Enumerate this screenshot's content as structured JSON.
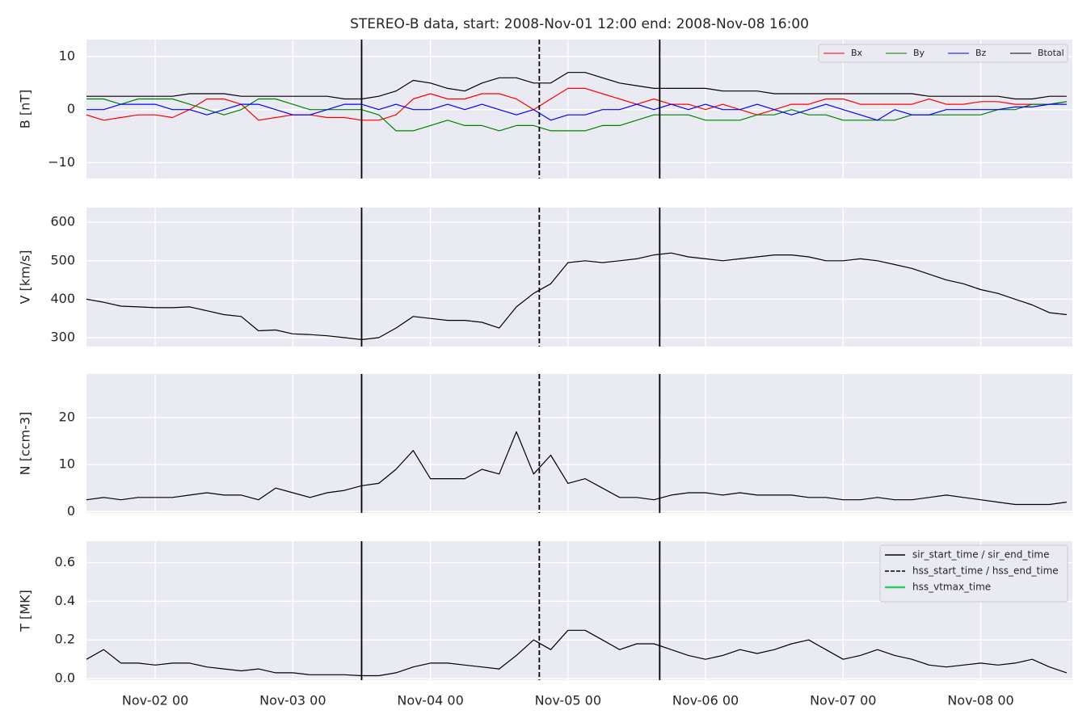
{
  "title": "STEREO-B data, start: 2008-Nov-01 12:00  end: 2008-Nov-08 16:00",
  "events": [
    {
      "name": "sir_start_time / sir_end_time",
      "style": "solid",
      "color": "#000000",
      "x": [
        "Nov-03 12",
        "Nov-05 16"
      ]
    },
    {
      "name": "hss_start_time / hss_end_time",
      "style": "dashed",
      "color": "#000000",
      "x": [
        "Nov-04 19"
      ]
    },
    {
      "name": "hss_vtmax_time",
      "style": "solid",
      "color": "#2ecc71",
      "x": []
    }
  ],
  "chart_data": [
    {
      "type": "line",
      "ylabel": "B [nT]",
      "legend": "upper right",
      "grid": true,
      "xlim": [
        "Nov-01 12",
        "Nov-08 16"
      ],
      "xticks": [
        "Nov-02 00",
        "Nov-03 00",
        "Nov-04 00",
        "Nov-05 00",
        "Nov-06 00",
        "Nov-07 00",
        "Nov-08 00"
      ],
      "ylim": [
        -13,
        13.2
      ],
      "yticks": [
        {
          "value": -10,
          "label": "−10"
        },
        0,
        10
      ],
      "x": [
        "Nov-01 12",
        "Nov-01 15",
        "Nov-01 18",
        "Nov-01 21",
        "Nov-02 00",
        "Nov-02 03",
        "Nov-02 06",
        "Nov-02 09",
        "Nov-02 12",
        "Nov-02 15",
        "Nov-02 18",
        "Nov-02 21",
        "Nov-03 00",
        "Nov-03 03",
        "Nov-03 06",
        "Nov-03 09",
        "Nov-03 12",
        "Nov-03 15",
        "Nov-03 18",
        "Nov-03 21",
        "Nov-04 00",
        "Nov-04 03",
        "Nov-04 06",
        "Nov-04 09",
        "Nov-04 12",
        "Nov-04 15",
        "Nov-04 18",
        "Nov-04 21",
        "Nov-05 00",
        "Nov-05 03",
        "Nov-05 06",
        "Nov-05 09",
        "Nov-05 12",
        "Nov-05 15",
        "Nov-05 18",
        "Nov-05 21",
        "Nov-06 00",
        "Nov-06 03",
        "Nov-06 06",
        "Nov-06 09",
        "Nov-06 12",
        "Nov-06 15",
        "Nov-06 18",
        "Nov-06 21",
        "Nov-07 00",
        "Nov-07 03",
        "Nov-07 06",
        "Nov-07 09",
        "Nov-07 12",
        "Nov-07 15",
        "Nov-07 18",
        "Nov-07 21",
        "Nov-08 00",
        "Nov-08 03",
        "Nov-08 06",
        "Nov-08 09",
        "Nov-08 12",
        "Nov-08 15"
      ],
      "series": [
        {
          "name": "Bx",
          "color": "#ff0000",
          "values": [
            -1,
            -2,
            -1.5,
            -1,
            -1,
            -1.5,
            0,
            2,
            2,
            1,
            -2,
            -1.5,
            -1,
            -1,
            -1.5,
            -1.5,
            -2,
            -2,
            -1,
            2,
            3,
            2,
            2,
            3,
            3,
            2,
            0,
            2,
            4,
            4,
            3,
            2,
            1,
            2,
            1,
            1,
            0,
            1,
            0,
            -1,
            0,
            1,
            1,
            2,
            2,
            1,
            1,
            1,
            1,
            2,
            1,
            1,
            1.5,
            1.5,
            1,
            1,
            1,
            1.5
          ]
        },
        {
          "name": "By",
          "color": "#008000",
          "values": [
            2,
            2,
            1,
            2,
            2,
            2,
            1,
            0,
            -1,
            0,
            2,
            2,
            1,
            0,
            0,
            0,
            0,
            -1,
            -4,
            -4,
            -3,
            -2,
            -3,
            -3,
            -4,
            -3,
            -3,
            -4,
            -4,
            -4,
            -3,
            -3,
            -2,
            -1,
            -1,
            -1,
            -2,
            -2,
            -2,
            -1,
            -1,
            0,
            -1,
            -1,
            -2,
            -2,
            -2,
            -2,
            -1,
            -1,
            -1,
            -1,
            -1,
            0,
            0,
            1,
            1,
            1.5
          ]
        },
        {
          "name": "Bz",
          "color": "#0000ff",
          "values": [
            0,
            0,
            1,
            1,
            1,
            0,
            0,
            -1,
            0,
            1,
            1,
            0,
            -1,
            -1,
            0,
            1,
            1,
            0,
            1,
            0,
            0,
            1,
            0,
            1,
            0,
            -1,
            0,
            -2,
            -1,
            -1,
            0,
            0,
            1,
            0,
            1,
            0,
            1,
            0,
            0,
            1,
            0,
            -1,
            0,
            1,
            0,
            -1,
            -2,
            0,
            -1,
            -1,
            0,
            0,
            0,
            0,
            0.5,
            0.5,
            1,
            1
          ]
        },
        {
          "name": "Btotal",
          "color": "#000000",
          "values": [
            2.5,
            2.5,
            2.5,
            2.5,
            2.5,
            2.5,
            3,
            3,
            3,
            2.5,
            2.5,
            2.5,
            2.5,
            2.5,
            2.5,
            2,
            2,
            2.5,
            3.5,
            5.5,
            5,
            4,
            3.5,
            5,
            6,
            6,
            5,
            5,
            7,
            7,
            6,
            5,
            4.5,
            4,
            4,
            4,
            4,
            3.5,
            3.5,
            3.5,
            3,
            3,
            3,
            3,
            3,
            3,
            3,
            3,
            3,
            2.5,
            2.5,
            2.5,
            2.5,
            2.5,
            2,
            2,
            2.5,
            2.5
          ]
        }
      ]
    },
    {
      "type": "line",
      "ylabel": "V [km/s]",
      "grid": true,
      "xlim": [
        "Nov-01 12",
        "Nov-08 16"
      ],
      "xticks": [
        "Nov-02 00",
        "Nov-03 00",
        "Nov-04 00",
        "Nov-05 00",
        "Nov-06 00",
        "Nov-07 00",
        "Nov-08 00"
      ],
      "ylim": [
        277,
        638
      ],
      "yticks": [
        300,
        400,
        500,
        600
      ],
      "x": [
        "Nov-01 12",
        "Nov-01 15",
        "Nov-01 18",
        "Nov-01 21",
        "Nov-02 00",
        "Nov-02 03",
        "Nov-02 06",
        "Nov-02 09",
        "Nov-02 12",
        "Nov-02 15",
        "Nov-02 18",
        "Nov-02 21",
        "Nov-03 00",
        "Nov-03 03",
        "Nov-03 06",
        "Nov-03 09",
        "Nov-03 12",
        "Nov-03 15",
        "Nov-03 18",
        "Nov-03 21",
        "Nov-04 00",
        "Nov-04 03",
        "Nov-04 06",
        "Nov-04 09",
        "Nov-04 12",
        "Nov-04 15",
        "Nov-04 18",
        "Nov-04 21",
        "Nov-05 00",
        "Nov-05 03",
        "Nov-05 06",
        "Nov-05 09",
        "Nov-05 12",
        "Nov-05 15",
        "Nov-05 18",
        "Nov-05 21",
        "Nov-06 00",
        "Nov-06 03",
        "Nov-06 06",
        "Nov-06 09",
        "Nov-06 12",
        "Nov-06 15",
        "Nov-06 18",
        "Nov-06 21",
        "Nov-07 00",
        "Nov-07 03",
        "Nov-07 06",
        "Nov-07 09",
        "Nov-07 12",
        "Nov-07 15",
        "Nov-07 18",
        "Nov-07 21",
        "Nov-08 00",
        "Nov-08 03",
        "Nov-08 06",
        "Nov-08 09",
        "Nov-08 12",
        "Nov-08 15"
      ],
      "color": "#000000",
      "values": [
        400,
        392,
        382,
        380,
        378,
        378,
        380,
        370,
        360,
        355,
        318,
        320,
        310,
        308,
        305,
        300,
        295,
        300,
        325,
        355,
        350,
        345,
        345,
        340,
        325,
        380,
        415,
        440,
        495,
        500,
        495,
        500,
        505,
        515,
        520,
        510,
        505,
        500,
        505,
        510,
        515,
        515,
        510,
        500,
        500,
        505,
        500,
        490,
        480,
        465,
        450,
        440,
        425,
        415,
        400,
        385,
        365,
        360
      ]
    },
    {
      "type": "line",
      "ylabel": "N [ccm-3]",
      "grid": true,
      "xlim": [
        "Nov-01 12",
        "Nov-08 16"
      ],
      "xticks": [
        "Nov-02 00",
        "Nov-03 00",
        "Nov-04 00",
        "Nov-05 00",
        "Nov-06 00",
        "Nov-07 00",
        "Nov-08 00"
      ],
      "ylim": [
        -0.3,
        29.3
      ],
      "yticks": [
        0,
        10,
        20
      ],
      "x": [
        "Nov-01 12",
        "Nov-01 15",
        "Nov-01 18",
        "Nov-01 21",
        "Nov-02 00",
        "Nov-02 03",
        "Nov-02 06",
        "Nov-02 09",
        "Nov-02 12",
        "Nov-02 15",
        "Nov-02 18",
        "Nov-02 21",
        "Nov-03 00",
        "Nov-03 03",
        "Nov-03 06",
        "Nov-03 09",
        "Nov-03 12",
        "Nov-03 15",
        "Nov-03 18",
        "Nov-03 21",
        "Nov-04 00",
        "Nov-04 03",
        "Nov-04 06",
        "Nov-04 09",
        "Nov-04 12",
        "Nov-04 15",
        "Nov-04 18",
        "Nov-04 21",
        "Nov-05 00",
        "Nov-05 03",
        "Nov-05 06",
        "Nov-05 09",
        "Nov-05 12",
        "Nov-05 15",
        "Nov-05 18",
        "Nov-05 21",
        "Nov-06 00",
        "Nov-06 03",
        "Nov-06 06",
        "Nov-06 09",
        "Nov-06 12",
        "Nov-06 15",
        "Nov-06 18",
        "Nov-06 21",
        "Nov-07 00",
        "Nov-07 03",
        "Nov-07 06",
        "Nov-07 09",
        "Nov-07 12",
        "Nov-07 15",
        "Nov-07 18",
        "Nov-07 21",
        "Nov-08 00",
        "Nov-08 03",
        "Nov-08 06",
        "Nov-08 09",
        "Nov-08 12",
        "Nov-08 15"
      ],
      "color": "#000000",
      "values": [
        2.5,
        3,
        2.5,
        3,
        3,
        3,
        3.5,
        4,
        3.5,
        3.5,
        2.5,
        5,
        4,
        3,
        4,
        4.5,
        5.5,
        6,
        9,
        13,
        7,
        7,
        7,
        9,
        8,
        17,
        8,
        12,
        6,
        7,
        5,
        3,
        3,
        2.5,
        3.5,
        4,
        4,
        3.5,
        4,
        3.5,
        3.5,
        3.5,
        3,
        3,
        2.5,
        2.5,
        3,
        2.5,
        2.5,
        3,
        3.5,
        3,
        2.5,
        2,
        1.5,
        1.5,
        1.5,
        2
      ]
    },
    {
      "type": "line",
      "ylabel": "T [MK]",
      "legend": "upper right",
      "grid": true,
      "xlim": [
        "Nov-01 12",
        "Nov-08 16"
      ],
      "xticks": [
        "Nov-02 00",
        "Nov-03 00",
        "Nov-04 00",
        "Nov-05 00",
        "Nov-06 00",
        "Nov-07 00",
        "Nov-08 00"
      ],
      "ylim": [
        -0.008,
        0.711
      ],
      "yticks": [
        {
          "value": 0,
          "label": "0.0"
        },
        {
          "value": 0.2,
          "label": "0.2"
        },
        {
          "value": 0.4,
          "label": "0.4"
        },
        {
          "value": 0.6,
          "label": "0.6"
        }
      ],
      "x": [
        "Nov-01 12",
        "Nov-01 15",
        "Nov-01 18",
        "Nov-01 21",
        "Nov-02 00",
        "Nov-02 03",
        "Nov-02 06",
        "Nov-02 09",
        "Nov-02 12",
        "Nov-02 15",
        "Nov-02 18",
        "Nov-02 21",
        "Nov-03 00",
        "Nov-03 03",
        "Nov-03 06",
        "Nov-03 09",
        "Nov-03 12",
        "Nov-03 15",
        "Nov-03 18",
        "Nov-03 21",
        "Nov-04 00",
        "Nov-04 03",
        "Nov-04 06",
        "Nov-04 09",
        "Nov-04 12",
        "Nov-04 15",
        "Nov-04 18",
        "Nov-04 21",
        "Nov-05 00",
        "Nov-05 03",
        "Nov-05 06",
        "Nov-05 09",
        "Nov-05 12",
        "Nov-05 15",
        "Nov-05 18",
        "Nov-05 21",
        "Nov-06 00",
        "Nov-06 03",
        "Nov-06 06",
        "Nov-06 09",
        "Nov-06 12",
        "Nov-06 15",
        "Nov-06 18",
        "Nov-06 21",
        "Nov-07 00",
        "Nov-07 03",
        "Nov-07 06",
        "Nov-07 09",
        "Nov-07 12",
        "Nov-07 15",
        "Nov-07 18",
        "Nov-07 21",
        "Nov-08 00",
        "Nov-08 03",
        "Nov-08 06",
        "Nov-08 09",
        "Nov-08 12",
        "Nov-08 15"
      ],
      "color": "#000000",
      "values": [
        0.1,
        0.15,
        0.08,
        0.08,
        0.07,
        0.08,
        0.08,
        0.06,
        0.05,
        0.04,
        0.05,
        0.03,
        0.03,
        0.02,
        0.02,
        0.02,
        0.015,
        0.015,
        0.03,
        0.06,
        0.08,
        0.08,
        0.07,
        0.06,
        0.05,
        0.12,
        0.2,
        0.15,
        0.25,
        0.25,
        0.2,
        0.15,
        0.18,
        0.18,
        0.15,
        0.12,
        0.1,
        0.12,
        0.15,
        0.13,
        0.15,
        0.18,
        0.2,
        0.15,
        0.1,
        0.12,
        0.15,
        0.12,
        0.1,
        0.07,
        0.06,
        0.07,
        0.08,
        0.07,
        0.08,
        0.1,
        0.06,
        0.03
      ]
    }
  ]
}
